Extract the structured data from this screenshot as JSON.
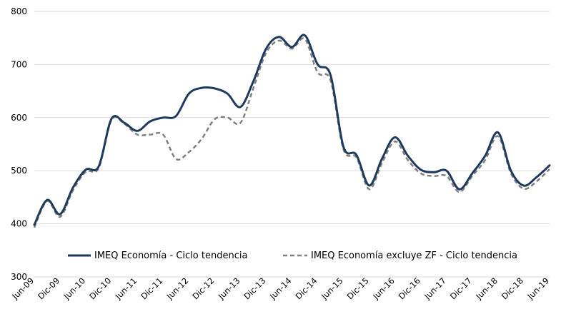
{
  "chart_data": {
    "type": "line",
    "title": "",
    "xlabel": "",
    "ylabel": "",
    "ylim": [
      300,
      800
    ],
    "yticks": [
      300,
      400,
      500,
      600,
      700,
      800
    ],
    "grid": true,
    "legend_position": "bottom",
    "x_tick_labels": [
      "Jun-09",
      "Dic-09",
      "Jun-10",
      "Dic-10",
      "Jun-11",
      "Dic-11",
      "Jun-12",
      "Dic-12",
      "Jun-13",
      "Dic-13",
      "Jun-14",
      "Dic-14",
      "Jun-15",
      "Dic-15",
      "Jun-16",
      "Dic-16",
      "Jun-17",
      "Dic-17",
      "Jun-18",
      "Dic-18",
      "Jun-19"
    ],
    "series": [
      {
        "name": "IMEQ Economía - Ciclo tendencia",
        "color": "#1f3a5f",
        "style": "solid",
        "points": [
          [
            0,
            398
          ],
          [
            2,
            445
          ],
          [
            4,
            418
          ],
          [
            6,
            468
          ],
          [
            8,
            502
          ],
          [
            10,
            508
          ],
          [
            12,
            598
          ],
          [
            14,
            590
          ],
          [
            16,
            575
          ],
          [
            18,
            593
          ],
          [
            20,
            600
          ],
          [
            22,
            603
          ],
          [
            24,
            645
          ],
          [
            26,
            656
          ],
          [
            28,
            655
          ],
          [
            30,
            645
          ],
          [
            32,
            620
          ],
          [
            34,
            668
          ],
          [
            36,
            730
          ],
          [
            38,
            752
          ],
          [
            40,
            733
          ],
          [
            42,
            755
          ],
          [
            44,
            700
          ],
          [
            46,
            680
          ],
          [
            48,
            545
          ],
          [
            50,
            530
          ],
          [
            52,
            472
          ],
          [
            54,
            523
          ],
          [
            56,
            563
          ],
          [
            58,
            528
          ],
          [
            60,
            502
          ],
          [
            62,
            497
          ],
          [
            64,
            500
          ],
          [
            66,
            465
          ],
          [
            68,
            495
          ],
          [
            70,
            528
          ],
          [
            72,
            572
          ],
          [
            74,
            500
          ],
          [
            76,
            472
          ],
          [
            78,
            488
          ],
          [
            80,
            510
          ]
        ]
      },
      {
        "name": "IMEQ Economía excluye ZF - Ciclo tendencia",
        "color": "#808080",
        "style": "dashed",
        "points": [
          [
            0,
            393
          ],
          [
            2,
            443
          ],
          [
            4,
            413
          ],
          [
            6,
            463
          ],
          [
            8,
            498
          ],
          [
            10,
            505
          ],
          [
            12,
            596
          ],
          [
            14,
            588
          ],
          [
            16,
            568
          ],
          [
            18,
            568
          ],
          [
            20,
            568
          ],
          [
            22,
            522
          ],
          [
            24,
            535
          ],
          [
            26,
            560
          ],
          [
            28,
            597
          ],
          [
            30,
            600
          ],
          [
            32,
            590
          ],
          [
            34,
            655
          ],
          [
            36,
            722
          ],
          [
            38,
            745
          ],
          [
            40,
            730
          ],
          [
            42,
            748
          ],
          [
            44,
            685
          ],
          [
            46,
            670
          ],
          [
            48,
            540
          ],
          [
            50,
            525
          ],
          [
            52,
            465
          ],
          [
            54,
            515
          ],
          [
            56,
            555
          ],
          [
            58,
            520
          ],
          [
            60,
            495
          ],
          [
            62,
            490
          ],
          [
            64,
            490
          ],
          [
            66,
            460
          ],
          [
            68,
            490
          ],
          [
            70,
            520
          ],
          [
            72,
            565
          ],
          [
            74,
            495
          ],
          [
            76,
            466
          ],
          [
            78,
            480
          ],
          [
            80,
            503
          ]
        ]
      }
    ]
  }
}
